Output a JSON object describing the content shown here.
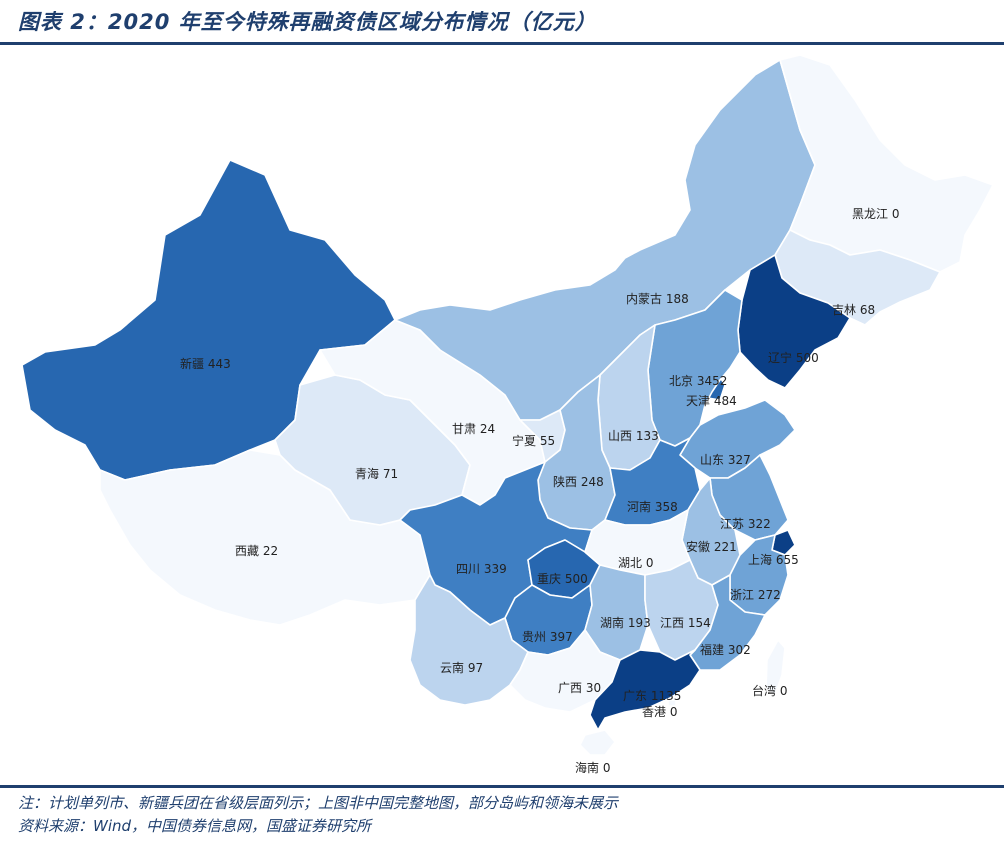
{
  "header": {
    "title": "图表 2：2020 年至今特殊再融资债区域分布情况（亿元）"
  },
  "footer": {
    "note": "注：计划单列市、新疆兵团在省级层面列示；上图非中国完整地图，部分岛屿和领海未展示",
    "source": "资料来源：Wind，中国债券信息网，国盛证券研究所"
  },
  "colors": {
    "border": "#ffffff",
    "title": "#1f3f6e",
    "scale": [
      "#f4f8fd",
      "#dde9f7",
      "#bcd4ee",
      "#9cc0e4",
      "#6fa3d6",
      "#3f7fc3",
      "#2767b0",
      "#0b3f86"
    ]
  },
  "provinces": [
    {
      "id": "xinjiang",
      "name": "新疆",
      "value": 443,
      "level": 6
    },
    {
      "id": "xizang",
      "name": "西藏",
      "value": 22,
      "level": 0
    },
    {
      "id": "qinghai",
      "name": "青海",
      "value": 71,
      "level": 1
    },
    {
      "id": "gansu",
      "name": "甘肃",
      "value": 24,
      "level": 0
    },
    {
      "id": "neimenggu",
      "name": "内蒙古",
      "value": 188,
      "level": 3
    },
    {
      "id": "heilongjiang",
      "name": "黑龙江",
      "value": 0,
      "level": 0
    },
    {
      "id": "jilin",
      "name": "吉林",
      "value": 68,
      "level": 1
    },
    {
      "id": "liaoning",
      "name": "辽宁",
      "value": 500,
      "level": 7
    },
    {
      "id": "beijing",
      "name": "北京",
      "value": 3452,
      "level": 7
    },
    {
      "id": "tianjin",
      "name": "天津",
      "value": 484,
      "level": 6
    },
    {
      "id": "hebei",
      "name": "",
      "value": null,
      "level": 4
    },
    {
      "id": "ningxia",
      "name": "宁夏",
      "value": 55,
      "level": 1
    },
    {
      "id": "shanxi",
      "name": "山西",
      "value": 133,
      "level": 2
    },
    {
      "id": "shandong",
      "name": "山东",
      "value": 327,
      "level": 4
    },
    {
      "id": "shaanxi",
      "name": "陕西",
      "value": 248,
      "level": 3
    },
    {
      "id": "henan",
      "name": "河南",
      "value": 358,
      "level": 5
    },
    {
      "id": "jiangsu",
      "name": "江苏",
      "value": 322,
      "level": 4
    },
    {
      "id": "anhui",
      "name": "安徽",
      "value": 221,
      "level": 3
    },
    {
      "id": "shanghai",
      "name": "上海",
      "value": 655,
      "level": 7
    },
    {
      "id": "sichuan",
      "name": "四川",
      "value": 339,
      "level": 5
    },
    {
      "id": "chongqing",
      "name": "重庆",
      "value": 500,
      "level": 6
    },
    {
      "id": "hubei",
      "name": "湖北",
      "value": 0,
      "level": 0
    },
    {
      "id": "zhejiang",
      "name": "浙江",
      "value": 272,
      "level": 4
    },
    {
      "id": "guizhou",
      "name": "贵州",
      "value": 397,
      "level": 5
    },
    {
      "id": "hunan",
      "name": "湖南",
      "value": 193,
      "level": 3
    },
    {
      "id": "jiangxi",
      "name": "江西",
      "value": 154,
      "level": 2
    },
    {
      "id": "fujian",
      "name": "福建",
      "value": 302,
      "level": 4
    },
    {
      "id": "yunnan",
      "name": "云南",
      "value": 97,
      "level": 2
    },
    {
      "id": "guangxi",
      "name": "广西",
      "value": 30,
      "level": 0
    },
    {
      "id": "guangdong",
      "name": "广东",
      "value": 1135,
      "level": 7
    },
    {
      "id": "xianggang",
      "name": "香港",
      "value": 0,
      "level": 0
    },
    {
      "id": "taiwan",
      "name": "台湾",
      "value": 0,
      "level": 0
    },
    {
      "id": "hainan",
      "name": "海南",
      "value": 0,
      "level": 0
    }
  ]
}
